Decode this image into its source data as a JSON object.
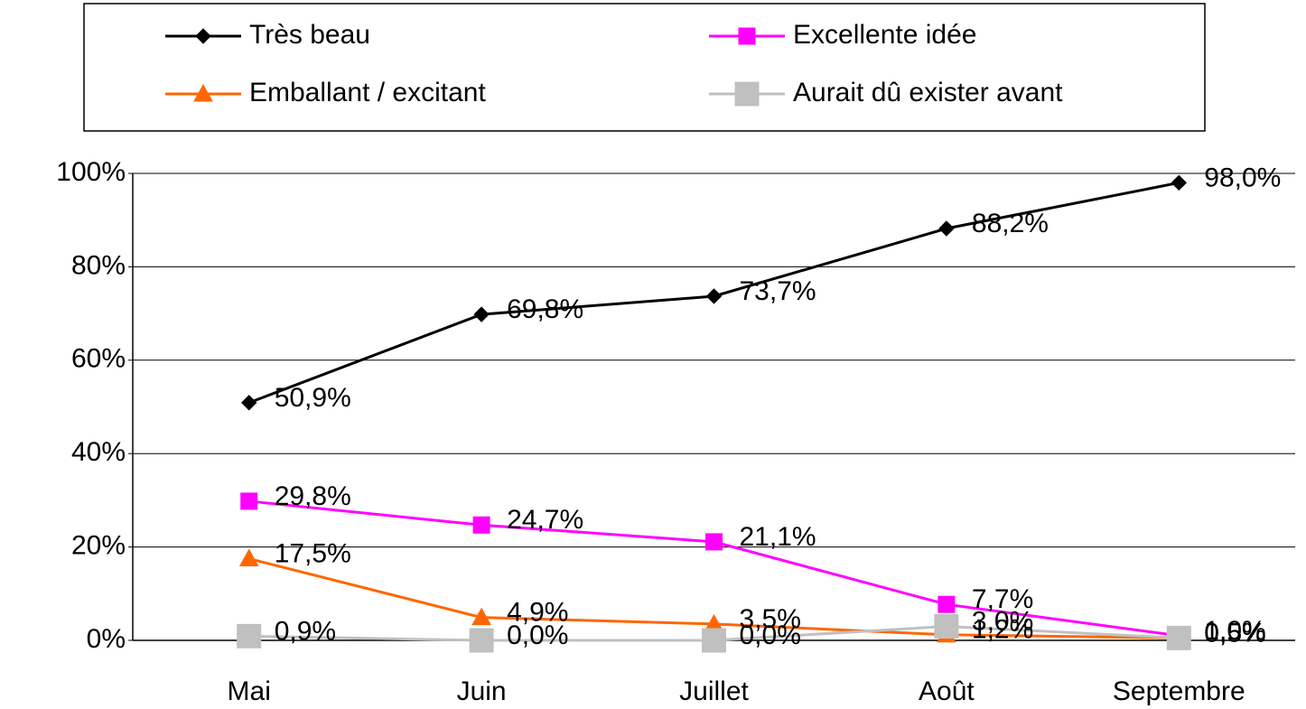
{
  "chart_data": {
    "type": "line",
    "categories": [
      "Mai",
      "Juin",
      "Juillet",
      "Août",
      "Septembre"
    ],
    "series": [
      {
        "name": "Très beau",
        "color": "#000000",
        "marker": "diamond",
        "values": [
          50.9,
          69.8,
          73.7,
          88.2,
          98.0
        ],
        "value_labels": [
          "50,9%",
          "69,8%",
          "73,7%",
          "88,2%",
          "98,0%"
        ]
      },
      {
        "name": "Excellente idée",
        "color": "#ff00ff",
        "marker": "square",
        "values": [
          29.8,
          24.7,
          21.1,
          7.7,
          1.0
        ],
        "value_labels": [
          "29,8%",
          "24,7%",
          "21,1%",
          "7,7%",
          "1,0%"
        ]
      },
      {
        "name": "Emballant / excitant",
        "color": "#ff6600",
        "marker": "triangle",
        "values": [
          17.5,
          4.9,
          3.5,
          1.2,
          0.5
        ],
        "value_labels": [
          "17,5%",
          "4,9%",
          "3,5%",
          "1,2%",
          "0,5%"
        ]
      },
      {
        "name": "Aurait dû exister avant",
        "color": "#c0c0c0",
        "marker": "square",
        "values": [
          0.9,
          0.0,
          0.0,
          3.0,
          0.5
        ],
        "value_labels": [
          "0,9%",
          "0,0%",
          "0,0%",
          "3,0%",
          "0,5%"
        ]
      }
    ],
    "ylim": [
      0,
      100
    ],
    "yticks": [
      {
        "value": 0,
        "label": "0%"
      },
      {
        "value": 20,
        "label": "20%"
      },
      {
        "value": 40,
        "label": "40%"
      },
      {
        "value": 60,
        "label": "60%"
      },
      {
        "value": 80,
        "label": "80%"
      },
      {
        "value": 100,
        "label": "100%"
      }
    ],
    "grid": true,
    "legend": "top"
  }
}
